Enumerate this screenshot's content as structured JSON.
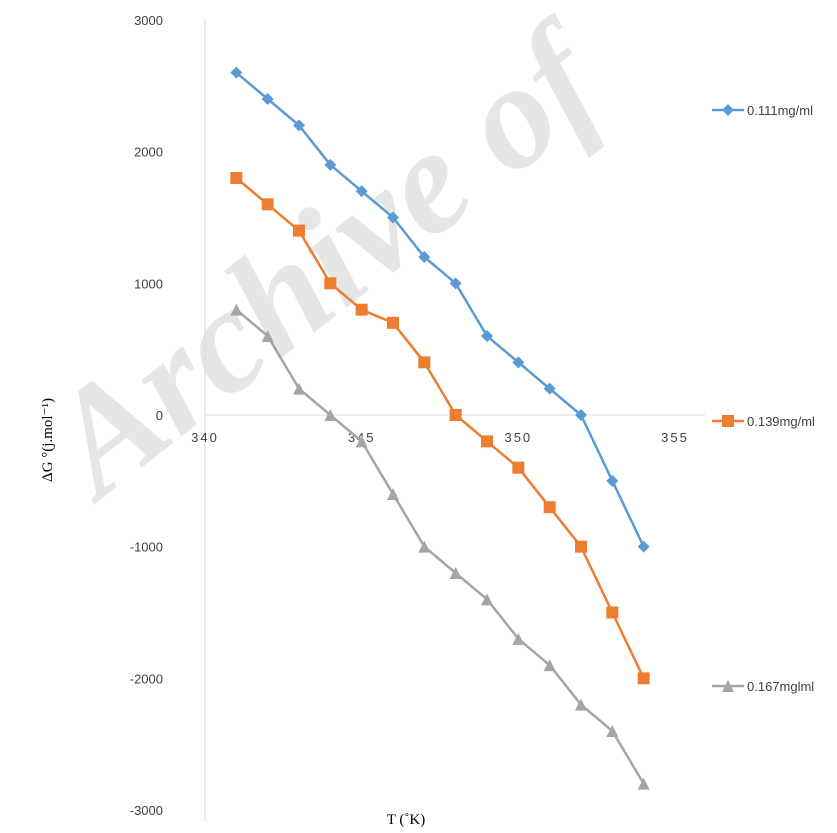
{
  "chart_data": {
    "type": "line",
    "title": "",
    "xlabel": "T (˚K)",
    "ylabel": "ΔG °(j.mol⁻¹)",
    "xlim": [
      340,
      355
    ],
    "ylim": [
      -3000,
      3000
    ],
    "x_ticks": [
      340,
      345,
      350,
      355
    ],
    "y_ticks": [
      3000,
      2000,
      1000,
      0,
      -1000,
      -2000,
      -3000
    ],
    "grid": false,
    "legend_position": "right",
    "watermark": "Archive of",
    "series": [
      {
        "name": "0.111mg/ml",
        "color": "#5b9bd5",
        "marker": "diamond",
        "x": [
          341,
          342,
          343,
          344,
          345,
          346,
          347,
          348,
          349,
          350,
          351,
          352,
          353,
          354
        ],
        "values": [
          2600,
          2400,
          2200,
          1900,
          1700,
          1500,
          1200,
          1000,
          600,
          400,
          200,
          0,
          -500,
          -1000
        ]
      },
      {
        "name": "0.139mg/ml",
        "color": "#ed7d31",
        "marker": "square",
        "x": [
          341,
          342,
          343,
          344,
          345,
          346,
          347,
          348,
          349,
          350,
          351,
          352,
          353,
          354
        ],
        "values": [
          1800,
          1600,
          1400,
          1000,
          800,
          700,
          400,
          0,
          -200,
          -400,
          -700,
          -1000,
          -1500,
          -2000
        ]
      },
      {
        "name": "0.167mglml",
        "color": "#a5a5a5",
        "marker": "triangle",
        "x": [
          341,
          342,
          343,
          344,
          345,
          346,
          347,
          348,
          349,
          350,
          351,
          352,
          353,
          354
        ],
        "values": [
          800,
          600,
          200,
          0,
          -200,
          -600,
          -1000,
          -1200,
          -1400,
          -1700,
          -1900,
          -2200,
          -2400,
          -2800
        ]
      }
    ]
  }
}
